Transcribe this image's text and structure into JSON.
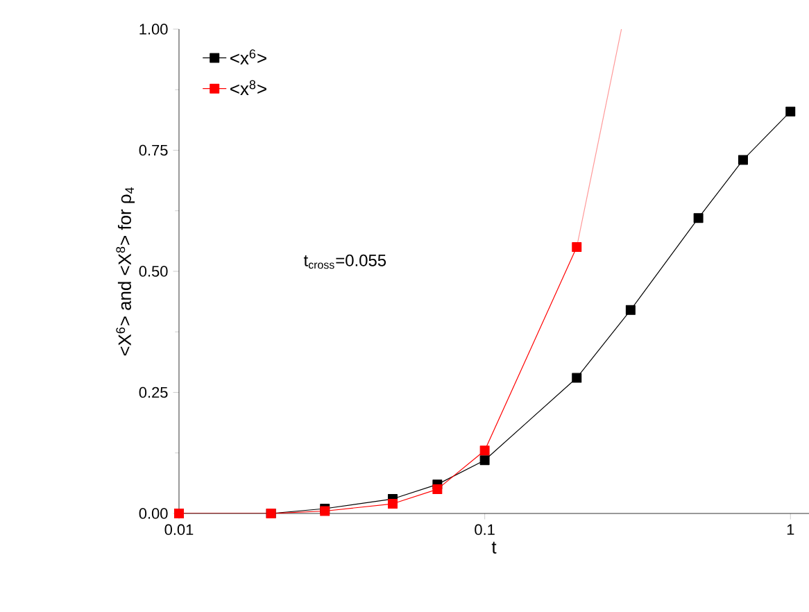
{
  "chart_data": {
    "type": "line",
    "xlabel": "t",
    "ylabel": "<X$^{6}$> and <X$^{8}$> for ρ$_{4}$",
    "log": "x",
    "marker": "square",
    "line_style": "solid",
    "legend": "top left",
    "xlim": [
      0.01,
      1.15
    ],
    "ylim": [
      0,
      1
    ],
    "xticks": [
      {
        "value": 0.01,
        "label": "0.01"
      },
      {
        "value": 0.1,
        "label": "0.1"
      },
      {
        "value": 1,
        "label": "1"
      }
    ],
    "yticks": [
      {
        "value": 0,
        "label": "0.00"
      },
      {
        "value": 0.25,
        "label": "0.25"
      },
      {
        "value": 0.5,
        "label": "0.50"
      },
      {
        "value": 0.75,
        "label": "0.75"
      },
      {
        "value": 1,
        "label": "1.00"
      }
    ],
    "annotations": [
      "t$_{cross}$=0.055"
    ],
    "series": [
      {
        "name": "<x$^{6}$>",
        "color": "#000000",
        "x": [
          0.01,
          0.02,
          0.03,
          0.05,
          0.07,
          0.1,
          0.2,
          0.3,
          0.5,
          0.7,
          1.0
        ],
        "values": [
          0.0,
          0.0,
          0.01,
          0.03,
          0.06,
          0.11,
          0.28,
          0.42,
          0.61,
          0.73,
          0.83
        ]
      },
      {
        "name": "<x$^{8}$>",
        "color": "#ff0000",
        "x": [
          0.01,
          0.02,
          0.03,
          0.05,
          0.07,
          0.1,
          0.2
        ],
        "values": [
          0.0,
          0.0,
          0.005,
          0.02,
          0.05,
          0.13,
          0.55
        ]
      },
      {
        "color": "#ff9999",
        "marker": "none",
        "x": [
          0.2,
          0.28
        ],
        "values": [
          0.55,
          1.0
        ]
      }
    ]
  }
}
